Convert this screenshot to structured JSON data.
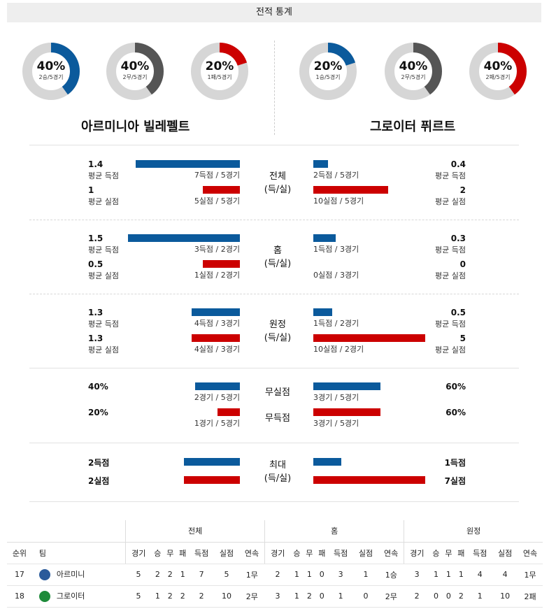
{
  "header": {
    "title": "전적 통계"
  },
  "donuts": [
    {
      "pct": "40%",
      "sub": "2승/5경기",
      "value": 0.4,
      "color": "#0b5a9c"
    },
    {
      "pct": "40%",
      "sub": "2무/5경기",
      "value": 0.4,
      "color": "#555555"
    },
    {
      "pct": "20%",
      "sub": "1패/5경기",
      "value": 0.2,
      "color": "#cc0000"
    },
    {
      "pct": "20%",
      "sub": "1승/5경기",
      "value": 0.2,
      "color": "#0b5a9c"
    },
    {
      "pct": "40%",
      "sub": "2무/5경기",
      "value": 0.4,
      "color": "#555555"
    },
    {
      "pct": "40%",
      "sub": "2패/5경기",
      "value": 0.4,
      "color": "#cc0000"
    }
  ],
  "teams": {
    "home": "아르미니아 빌레펠트",
    "away": "그로이터 퓌르트"
  },
  "sections": [
    {
      "center": [
        "전체",
        "(득/실)"
      ],
      "rows": [
        {
          "lval": "1.4",
          "llbl": "평균 득점",
          "lsub": "7득점 / 5경기",
          "lfrac": 0.933,
          "rval": "0.4",
          "rlbl": "평균 득점",
          "rsub": "2득점 / 5경기",
          "rfrac": 0.133
        },
        {
          "lval": "1",
          "llbl": "평균 실점",
          "lsub": "5실점 / 5경기",
          "lfrac": 0.333,
          "rval": "2",
          "rlbl": "평균 실점",
          "rsub": "10실점 / 5경기",
          "rfrac": 0.667
        }
      ]
    },
    {
      "center": [
        "홈",
        "(득/실)"
      ],
      "rows": [
        {
          "lval": "1.5",
          "llbl": "평균 득점",
          "lsub": "3득점 / 2경기",
          "lfrac": 1.0,
          "rval": "0.3",
          "rlbl": "평균 득점",
          "rsub": "1득점 / 3경기",
          "rfrac": 0.2
        },
        {
          "lval": "0.5",
          "llbl": "평균 실점",
          "lsub": "1실점 / 2경기",
          "lfrac": 0.333,
          "rval": "0",
          "rlbl": "평균 실점",
          "rsub": "0실점 / 3경기",
          "rfrac": 0
        }
      ]
    },
    {
      "center": [
        "원정",
        "(득/실)"
      ],
      "rows": [
        {
          "lval": "1.3",
          "llbl": "평균 득점",
          "lsub": "4득점 / 3경기",
          "lfrac": 0.433,
          "rval": "0.5",
          "rlbl": "평균 득점",
          "rsub": "1득점 / 2경기",
          "rfrac": 0.167
        },
        {
          "lval": "1.3",
          "llbl": "평균 실점",
          "lsub": "4실점 / 3경기",
          "lfrac": 0.433,
          "rval": "5",
          "rlbl": "평균 실점",
          "rsub": "10실점 / 2경기",
          "rfrac": 1.0
        }
      ]
    }
  ],
  "nogoal": {
    "rows": [
      {
        "center": "무실점",
        "lval": "40%",
        "lsub": "2경기 / 5경기",
        "lfrac": 0.4,
        "rval": "60%",
        "rsub": "3경기 / 5경기",
        "rfrac": 0.6
      },
      {
        "center": "무득점",
        "lval": "20%",
        "lsub": "1경기 / 5경기",
        "lfrac": 0.2,
        "rval": "60%",
        "rsub": "3경기 / 5경기",
        "rfrac": 0.6
      }
    ]
  },
  "max": {
    "center": [
      "최대",
      "(득/실)"
    ],
    "rows": [
      {
        "lval": "2득점",
        "lfrac": 0.5,
        "rval": "1득점",
        "rfrac": 0.25
      },
      {
        "lval": "2실점",
        "lfrac": 0.5,
        "rval": "7실점",
        "rfrac": 1.0
      }
    ]
  },
  "table": {
    "groups": [
      "전체",
      "홈",
      "원정"
    ],
    "headers": [
      "순위",
      "팀",
      "경기",
      "승",
      "무",
      "패",
      "득점",
      "실점",
      "연속",
      "경기",
      "승",
      "무",
      "패",
      "득점",
      "실점",
      "연속",
      "경기",
      "승",
      "무",
      "패",
      "득점",
      "실점",
      "연속"
    ],
    "rows": [
      {
        "rank": "17",
        "team": "아르미니",
        "logo": "#2a5a9a",
        "cells": [
          "5",
          "2",
          "2",
          "1",
          "7",
          "5",
          "1무",
          "2",
          "1",
          "1",
          "0",
          "3",
          "1",
          "1승",
          "3",
          "1",
          "1",
          "1",
          "4",
          "4",
          "1무"
        ]
      },
      {
        "rank": "18",
        "team": "그로이터",
        "logo": "#1e8b3a",
        "cells": [
          "5",
          "1",
          "2",
          "2",
          "2",
          "10",
          "2무",
          "3",
          "1",
          "2",
          "0",
          "1",
          "0",
          "2무",
          "2",
          "0",
          "0",
          "2",
          "1",
          "10",
          "2패"
        ]
      }
    ]
  }
}
